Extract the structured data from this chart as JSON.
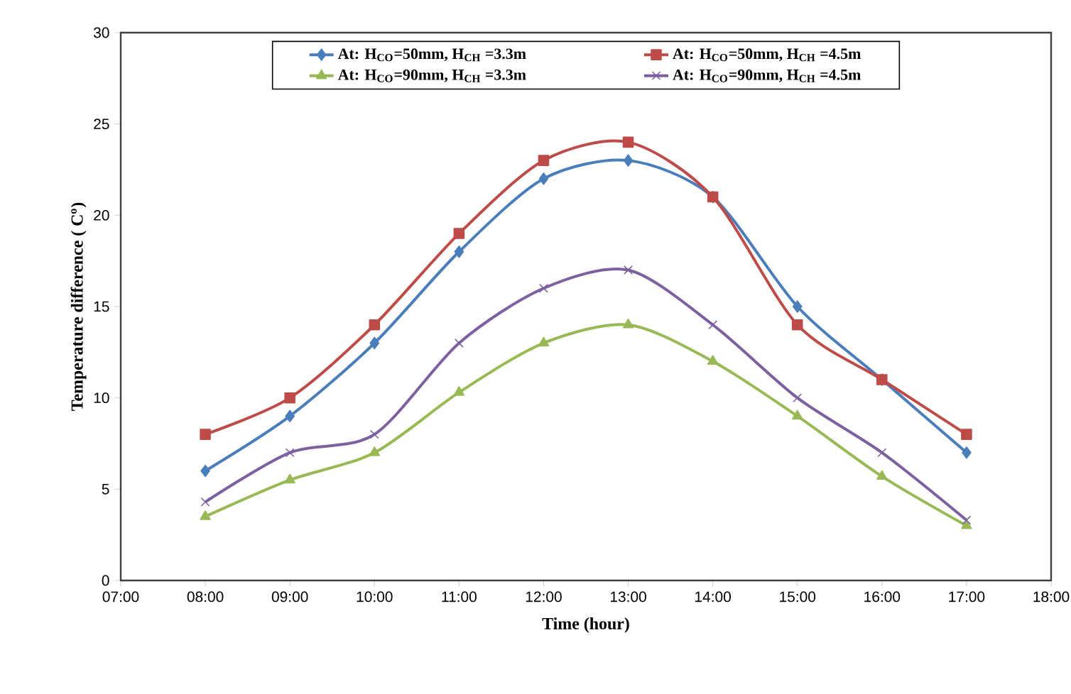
{
  "chart_data": {
    "type": "line",
    "xlabel": "Time (hour)",
    "ylabel": "Temperature difference ( C$^{o}$)",
    "x": [
      8,
      9,
      10,
      11,
      12,
      13,
      14,
      15,
      16,
      17
    ],
    "xlim": [
      7,
      18
    ],
    "xticks": [
      {
        "value": 7,
        "label": "07:00"
      },
      {
        "value": 8,
        "label": "08:00"
      },
      {
        "value": 9,
        "label": "09:00"
      },
      {
        "value": 10,
        "label": "10:00"
      },
      {
        "value": 11,
        "label": "11:00"
      },
      {
        "value": 12,
        "label": "12:00"
      },
      {
        "value": 13,
        "label": "13:00"
      },
      {
        "value": 14,
        "label": "14:00"
      },
      {
        "value": 15,
        "label": "15:00"
      },
      {
        "value": 16,
        "label": "16:00"
      },
      {
        "value": 17,
        "label": "17:00"
      },
      {
        "value": 18,
        "label": "18:00"
      }
    ],
    "ylim": [
      0,
      30
    ],
    "yticks": [
      0,
      5,
      10,
      15,
      20,
      25,
      30
    ],
    "grid": false,
    "legend": "top",
    "line_style": "solid",
    "series": [
      {
        "name": "At: H$_{CO}$=50mm, H$_{CH}$ =3.3m",
        "color": "#4a7ebb",
        "marker": "diamond",
        "values": [
          6,
          9,
          13,
          18,
          22,
          23,
          21,
          15,
          11,
          7
        ]
      },
      {
        "name": "At: H$_{CO}$=50mm, H$_{CH}$ =4.5m",
        "color": "#be4b48",
        "marker": "square",
        "values": [
          8,
          10,
          14,
          19,
          23,
          24,
          21,
          14,
          11,
          8
        ]
      },
      {
        "name": "At: H$_{CO}$=90mm, H$_{CH}$ =3.3m",
        "color": "#98b954",
        "marker": "triangle",
        "values": [
          3.5,
          5.5,
          7,
          10.3,
          13,
          14,
          12,
          9,
          5.7,
          3
        ]
      },
      {
        "name": "At: H$_{CO}$=90mm, H$_{CH}$ =4.5m",
        "color": "#7d60a0",
        "marker": "cross",
        "values": [
          4.3,
          7,
          8,
          13,
          16,
          17,
          14,
          10,
          7,
          3.3
        ]
      }
    ]
  }
}
